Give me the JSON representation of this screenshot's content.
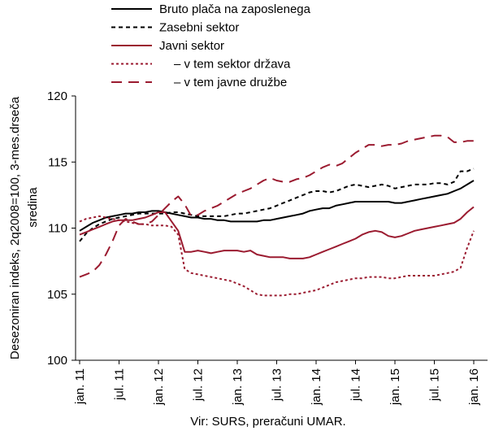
{
  "chart_data": {
    "type": "line",
    "ylabel_lines": [
      "Desezoniran indeks, 2q2008=100, 3-mes.drseča",
      "sredina"
    ],
    "source": "Vir: SURS, preračuni UMAR.",
    "ylim": [
      100,
      120
    ],
    "yticks": [
      100,
      105,
      110,
      115,
      120
    ],
    "x_range": [
      0,
      60
    ],
    "xticks": [
      {
        "x": 0,
        "label": "jan. 11"
      },
      {
        "x": 6,
        "label": "jul. 11"
      },
      {
        "x": 12,
        "label": "jan. 12"
      },
      {
        "x": 18,
        "label": "jul. 12"
      },
      {
        "x": 24,
        "label": "jan. 13"
      },
      {
        "x": 30,
        "label": "jul. 13"
      },
      {
        "x": 36,
        "label": "jan. 14"
      },
      {
        "x": 42,
        "label": "jul. 14"
      },
      {
        "x": 48,
        "label": "jan. 15"
      },
      {
        "x": 54,
        "label": "jul. 15"
      },
      {
        "x": 60,
        "label": "jan. 16"
      }
    ],
    "legend": "top-left",
    "grid": false,
    "series": [
      {
        "name": "Bruto plača na zaposlenega",
        "color": "#000000",
        "dash": "solid",
        "values": [
          109.8,
          110.1,
          110.4,
          110.6,
          110.8,
          110.9,
          111.0,
          111.1,
          111.1,
          111.2,
          111.2,
          111.3,
          111.3,
          111.2,
          111.1,
          111.0,
          110.9,
          110.8,
          110.8,
          110.7,
          110.7,
          110.6,
          110.6,
          110.5,
          110.5,
          110.5,
          110.5,
          110.5,
          110.6,
          110.6,
          110.7,
          110.8,
          110.9,
          111.0,
          111.1,
          111.3,
          111.4,
          111.5,
          111.5,
          111.7,
          111.8,
          111.9,
          112.0,
          112.0,
          112.0,
          112.0,
          112.0,
          112.0,
          111.9,
          111.9,
          112.0,
          112.1,
          112.2,
          112.3,
          112.4,
          112.5,
          112.6,
          112.8,
          113.0,
          113.3,
          113.6
        ]
      },
      {
        "name": "Zasebni sektor",
        "color": "#000000",
        "dash": "dashed",
        "values": [
          109.0,
          109.6,
          110.0,
          110.3,
          110.5,
          110.7,
          110.8,
          110.9,
          111.0,
          111.1,
          111.1,
          111.1,
          111.1,
          111.1,
          111.2,
          111.2,
          111.1,
          111.0,
          110.9,
          110.9,
          110.9,
          110.9,
          110.9,
          111.0,
          111.1,
          111.1,
          111.2,
          111.3,
          111.4,
          111.5,
          111.7,
          111.9,
          112.1,
          112.3,
          112.5,
          112.7,
          112.8,
          112.8,
          112.7,
          112.8,
          113.0,
          113.2,
          113.3,
          113.2,
          113.1,
          113.2,
          113.3,
          113.2,
          113.0,
          113.1,
          113.2,
          113.3,
          113.3,
          113.3,
          113.4,
          113.4,
          113.3,
          113.5,
          114.3,
          114.3,
          114.5
        ]
      },
      {
        "name": "Javni sektor",
        "color": "#9b1b30",
        "dash": "solid",
        "values": [
          109.5,
          109.7,
          109.9,
          110.1,
          110.3,
          110.5,
          110.6,
          110.6,
          110.6,
          110.7,
          110.8,
          111.0,
          111.2,
          111.2,
          110.5,
          109.8,
          108.2,
          108.2,
          108.3,
          108.2,
          108.1,
          108.2,
          108.3,
          108.3,
          108.3,
          108.2,
          108.3,
          108.0,
          107.9,
          107.8,
          107.8,
          107.8,
          107.7,
          107.7,
          107.7,
          107.8,
          108.0,
          108.2,
          108.4,
          108.6,
          108.8,
          109.0,
          109.2,
          109.5,
          109.7,
          109.8,
          109.7,
          109.4,
          109.3,
          109.4,
          109.6,
          109.8,
          109.9,
          110.0,
          110.1,
          110.2,
          110.3,
          110.4,
          110.7,
          111.2,
          111.6
        ]
      },
      {
        "name": "– v tem sektor država",
        "color": "#9b1b30",
        "dash": "dotted",
        "values": [
          110.5,
          110.7,
          110.8,
          110.9,
          110.8,
          110.7,
          110.6,
          110.5,
          110.4,
          110.3,
          110.3,
          110.2,
          110.2,
          110.2,
          110.1,
          109.5,
          106.9,
          106.6,
          106.5,
          106.4,
          106.3,
          106.2,
          106.1,
          106.0,
          105.8,
          105.6,
          105.3,
          105.0,
          104.9,
          104.9,
          104.9,
          104.9,
          105.0,
          105.0,
          105.1,
          105.2,
          105.3,
          105.5,
          105.7,
          105.9,
          106.0,
          106.1,
          106.2,
          106.2,
          106.3,
          106.3,
          106.3,
          106.2,
          106.2,
          106.3,
          106.4,
          106.4,
          106.4,
          106.4,
          106.4,
          106.5,
          106.6,
          106.7,
          107.0,
          108.5,
          109.8
        ]
      },
      {
        "name": "– v tem javne družbe",
        "color": "#9b1b30",
        "dash": "longdash",
        "values": [
          106.3,
          106.5,
          106.7,
          107.2,
          108.0,
          109.0,
          110.2,
          110.7,
          110.5,
          110.3,
          110.3,
          110.5,
          111.0,
          111.5,
          112.0,
          112.4,
          111.8,
          110.9,
          111.0,
          111.3,
          111.5,
          111.7,
          112.0,
          112.3,
          112.6,
          112.8,
          113.0,
          113.3,
          113.6,
          113.8,
          113.6,
          113.5,
          113.5,
          113.7,
          113.8,
          114.0,
          114.3,
          114.6,
          114.8,
          114.7,
          114.9,
          115.3,
          115.7,
          116.0,
          116.3,
          116.3,
          116.2,
          116.3,
          116.3,
          116.4,
          116.6,
          116.7,
          116.8,
          116.9,
          117.0,
          117.0,
          116.9,
          116.5,
          116.5,
          116.6,
          116.6
        ]
      }
    ]
  }
}
